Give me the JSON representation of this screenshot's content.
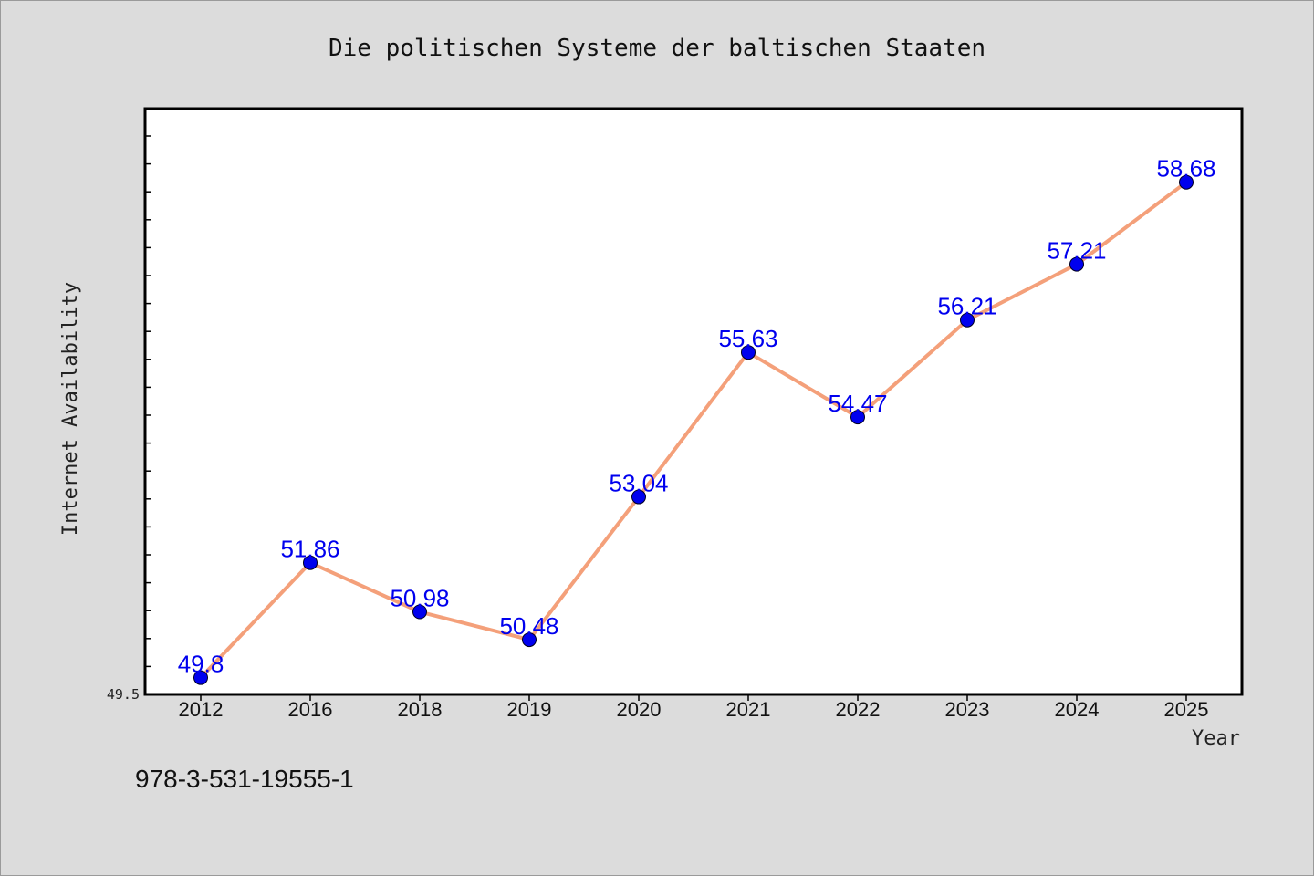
{
  "footnote": "978-3-531-19555-1",
  "chart_data": {
    "type": "line",
    "title": "Die politischen Systeme der baltischen Staaten",
    "xlabel": "Year",
    "ylabel": "Internet Availability",
    "ymin_label": "49.5",
    "ylim": [
      49.5,
      60.0
    ],
    "grid": false,
    "categories": [
      "2012",
      "2016",
      "2018",
      "2019",
      "2020",
      "2021",
      "2022",
      "2023",
      "2024",
      "2025"
    ],
    "series": [
      {
        "values": [
          49.8,
          51.86,
          50.98,
          50.48,
          53.04,
          55.63,
          54.47,
          56.21,
          57.21,
          58.68
        ],
        "labels": [
          "49.8",
          "51.86",
          "50.98",
          "50.48",
          "53.04",
          "55.63",
          "54.47",
          "56.21",
          "57.21",
          "58.68"
        ]
      }
    ],
    "colors": {
      "line": "#f4a07a",
      "marker": "#0000ee",
      "data_label": "#0000ee"
    }
  }
}
